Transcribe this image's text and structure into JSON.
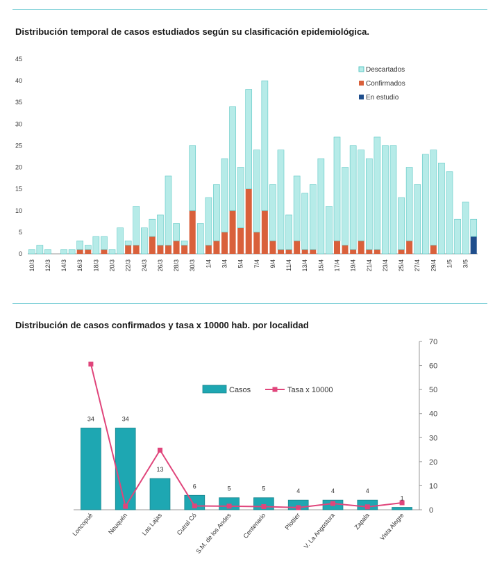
{
  "chart_data": [
    {
      "type": "bar",
      "title": "Distribución temporal de casos estudiados según su  clasificación epidemiológica.",
      "stacked": true,
      "ylim": [
        0,
        45
      ],
      "yticks": [
        0,
        5,
        10,
        15,
        20,
        25,
        30,
        35,
        40,
        45
      ],
      "legend_position": "top-right",
      "categories": [
        "10/3",
        "11/3",
        "12/3",
        "13/3",
        "14/3",
        "15/3",
        "16/3",
        "17/3",
        "18/3",
        "19/3",
        "20/3",
        "21/3",
        "22/3",
        "23/3",
        "24/3",
        "25/3",
        "26/3",
        "27/3",
        "28/3",
        "29/3",
        "30/3",
        "31/3",
        "1/4",
        "2/4",
        "3/4",
        "4/4",
        "5/4",
        "6/4",
        "7/4",
        "8/4",
        "9/4",
        "10/4",
        "11/4",
        "12/4",
        "13/4",
        "14/4",
        "15/4",
        "16/4",
        "17/4",
        "18/4",
        "19/4",
        "20/4",
        "21/4",
        "22/4",
        "23/4",
        "24/4",
        "25/4",
        "26/4",
        "27/4",
        "28/4",
        "29/4",
        "30/4",
        "1/5",
        "2/5",
        "3/5",
        "4/5"
      ],
      "tick_labels": [
        "10/3",
        "12/3",
        "14/3",
        "16/3",
        "18/3",
        "20/3",
        "22/3",
        "24/3",
        "26/3",
        "28/3",
        "30/3",
        "1/4",
        "3/4",
        "5/4",
        "7/4",
        "9/4",
        "11/4",
        "13/4",
        "15/4",
        "17/4",
        "19/4",
        "21/4",
        "23/4",
        "25/4",
        "27/4",
        "29/4",
        "1/5",
        "3/5"
      ],
      "series": [
        {
          "name": "Descartados",
          "color": "#b6ebe8",
          "values": [
            1,
            2,
            1,
            0,
            1,
            1,
            2,
            1,
            4,
            3,
            1,
            6,
            1,
            9,
            6,
            4,
            7,
            16,
            4,
            1,
            15,
            7,
            11,
            13,
            17,
            24,
            14,
            23,
            19,
            30,
            13,
            23,
            8,
            15,
            13,
            15,
            22,
            11,
            24,
            18,
            24,
            21,
            21,
            26,
            25,
            25,
            12,
            17,
            16,
            23,
            22,
            21,
            19,
            8,
            12,
            4
          ]
        },
        {
          "name": "Confirmados",
          "color": "#d9603b",
          "values": [
            0,
            0,
            0,
            0,
            0,
            0,
            1,
            1,
            0,
            1,
            0,
            0,
            2,
            2,
            0,
            4,
            2,
            2,
            3,
            2,
            10,
            0,
            2,
            3,
            5,
            10,
            6,
            15,
            5,
            10,
            3,
            1,
            1,
            3,
            1,
            1,
            0,
            0,
            3,
            2,
            1,
            3,
            1,
            1,
            0,
            0,
            1,
            3,
            0,
            0,
            2,
            0,
            0,
            0,
            0,
            0
          ]
        },
        {
          "name": "En estudio",
          "color": "#1f4e8c",
          "values": [
            0,
            0,
            0,
            0,
            0,
            0,
            0,
            0,
            0,
            0,
            0,
            0,
            0,
            0,
            0,
            0,
            0,
            0,
            0,
            0,
            0,
            0,
            0,
            0,
            0,
            0,
            0,
            0,
            0,
            0,
            0,
            0,
            0,
            0,
            0,
            0,
            0,
            0,
            0,
            0,
            0,
            0,
            0,
            0,
            0,
            0,
            0,
            0,
            0,
            0,
            0,
            0,
            0,
            0,
            0,
            4
          ]
        }
      ]
    },
    {
      "type": "bar+line",
      "title": "Distribución de casos confirmados y tasa x 10000 hab. por localidad",
      "categories": [
        "Loncopué",
        "Neuquén",
        "Las Lajas",
        "Cutral Có",
        "S.M. de los Andes",
        "Centenario",
        "Plottier",
        "V. La Angostura",
        "Zapala",
        "Vista Alegre"
      ],
      "yaxis_right_ticks": [
        0,
        10,
        20,
        30,
        40,
        50,
        60,
        70
      ],
      "ylim": [
        0,
        70
      ],
      "legend_position": "top-center",
      "series": [
        {
          "name": "Casos",
          "type": "bar",
          "color": "#1ea7b2",
          "values": [
            34,
            34,
            13,
            6,
            5,
            5,
            4,
            4,
            4,
            1
          ]
        },
        {
          "name": "Tasa x 10000",
          "type": "line",
          "color": "#e0457b",
          "values": [
            60.6,
            1.4,
            24.8,
            1.6,
            1.5,
            1.3,
            0.9,
            2.6,
            1.2,
            2.9
          ]
        }
      ]
    }
  ]
}
